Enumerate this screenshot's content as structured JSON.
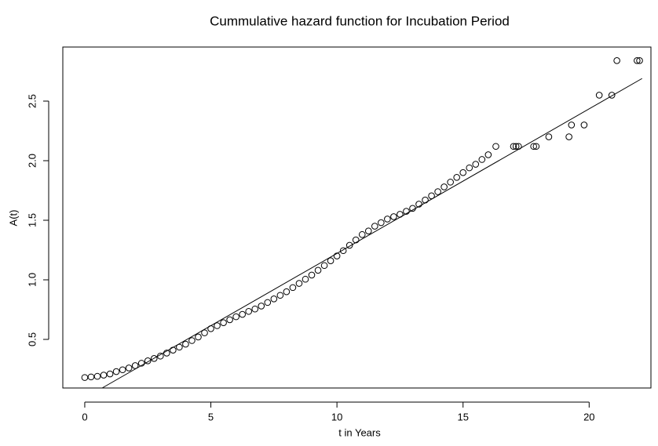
{
  "chart_data": {
    "type": "scatter",
    "title": "Cummulative hazard function for Incubation Period",
    "x_label": "t in Years",
    "y_label": "A(t)",
    "xlim": [
      -0.87,
      22.45
    ],
    "ylim": [
      0.092,
      2.954
    ],
    "xticks": [
      0,
      5,
      10,
      15,
      20
    ],
    "yticks": [
      0.5,
      {
        "value": 1,
        "label": "1.0"
      },
      1.5,
      {
        "value": 2,
        "label": "2.0"
      },
      2.5
    ],
    "color": "#000000",
    "points": {
      "x": [
        0,
        0.25,
        0.5,
        0.75,
        1,
        1.25,
        1.5,
        1.75,
        2,
        2.25,
        2.5,
        2.75,
        3,
        3.25,
        3.5,
        3.75,
        4,
        4.25,
        4.5,
        4.75,
        5,
        5.25,
        5.5,
        5.75,
        6,
        6.25,
        6.5,
        6.75,
        7,
        7.25,
        7.5,
        7.75,
        8,
        8.25,
        8.5,
        8.75,
        9,
        9.25,
        9.5,
        9.75,
        10,
        10.25,
        10.5,
        10.75,
        11,
        11.25,
        11.5,
        11.75,
        12,
        12.25,
        12.5,
        12.75,
        13,
        13.25,
        13.5,
        13.75,
        14,
        14.25,
        14.5,
        14.75,
        15,
        15.25,
        15.5,
        15.75,
        16,
        16.3,
        17,
        17.1,
        17.2,
        17.8,
        17.9,
        18.4,
        19.2,
        19.3,
        19.8,
        20.4,
        20.9,
        21.1,
        21.9,
        22
      ],
      "values": [
        0.18,
        0.185,
        0.19,
        0.2,
        0.21,
        0.23,
        0.245,
        0.26,
        0.28,
        0.3,
        0.32,
        0.34,
        0.36,
        0.385,
        0.41,
        0.435,
        0.46,
        0.49,
        0.52,
        0.555,
        0.59,
        0.615,
        0.64,
        0.665,
        0.69,
        0.71,
        0.735,
        0.755,
        0.78,
        0.81,
        0.84,
        0.87,
        0.9,
        0.935,
        0.97,
        1.005,
        1.04,
        1.08,
        1.12,
        1.16,
        1.2,
        1.245,
        1.29,
        1.335,
        1.38,
        1.41,
        1.45,
        1.48,
        1.51,
        1.53,
        1.55,
        1.575,
        1.6,
        1.635,
        1.67,
        1.705,
        1.74,
        1.78,
        1.82,
        1.86,
        1.9,
        1.94,
        1.97,
        2.01,
        2.05,
        2.12,
        2.12,
        2.12,
        2.12,
        2.12,
        2.12,
        2.2,
        2.2,
        2.3,
        2.3,
        2.55,
        2.55,
        2.84,
        2.84,
        2.84
      ]
    },
    "fit_line": {
      "x": [
        0.69,
        22.1
      ],
      "values": [
        0.092,
        2.69
      ]
    }
  }
}
